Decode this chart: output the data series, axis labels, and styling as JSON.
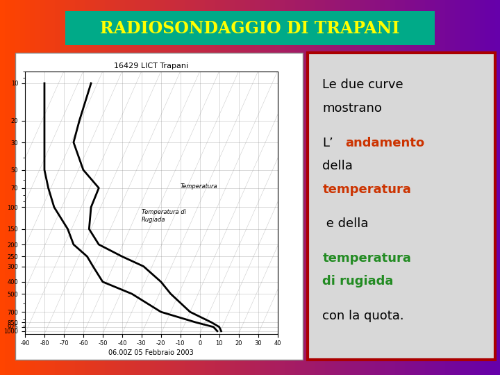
{
  "title": "RADIOSONDAGGIO DI TRAPANI",
  "title_color": "#FFFF00",
  "title_bg_color": "#00AA88",
  "bg_gradient_left": "#FF4400",
  "bg_gradient_right": "#6600AA",
  "chart_title": "16429 LICT Trapani",
  "chart_date": "06.00Z 05 Febbraio 2003",
  "text_lines": [
    {
      "text": "Le due curve",
      "color": "#000000",
      "style": "normal",
      "size": 20
    },
    {
      "text": "mostrano",
      "color": "#000000",
      "style": "normal",
      "size": 20
    },
    {
      "text": "",
      "color": "#000000",
      "style": "normal",
      "size": 10
    },
    {
      "text": "L’andamento",
      "color": "#CC3300",
      "style": "bold",
      "prefix": "L’",
      "prefix_color": "#000000",
      "size": 20
    },
    {
      "text": "della",
      "color": "#000000",
      "style": "normal",
      "size": 20
    },
    {
      "text": "temperatura",
      "color": "#CC3300",
      "style": "bold",
      "size": 20
    },
    {
      "text": "",
      "color": "#000000",
      "style": "normal",
      "size": 10
    },
    {
      "text": " e della",
      "color": "#000000",
      "style": "normal",
      "size": 20
    },
    {
      "text": "",
      "color": "#000000",
      "style": "normal",
      "size": 10
    },
    {
      "text": "temperatura",
      "color": "#228B22",
      "style": "bold",
      "size": 20
    },
    {
      "text": "di rugiada",
      "color": "#228B22",
      "style": "bold",
      "size": 20
    },
    {
      "text": "",
      "color": "#000000",
      "style": "normal",
      "size": 10
    },
    {
      "text": "con la quota.",
      "color": "#000000",
      "style": "normal",
      "size": 20
    }
  ],
  "right_panel_bg": "#E8E8E8",
  "sounding_chart_bg": "#FFFFFF"
}
